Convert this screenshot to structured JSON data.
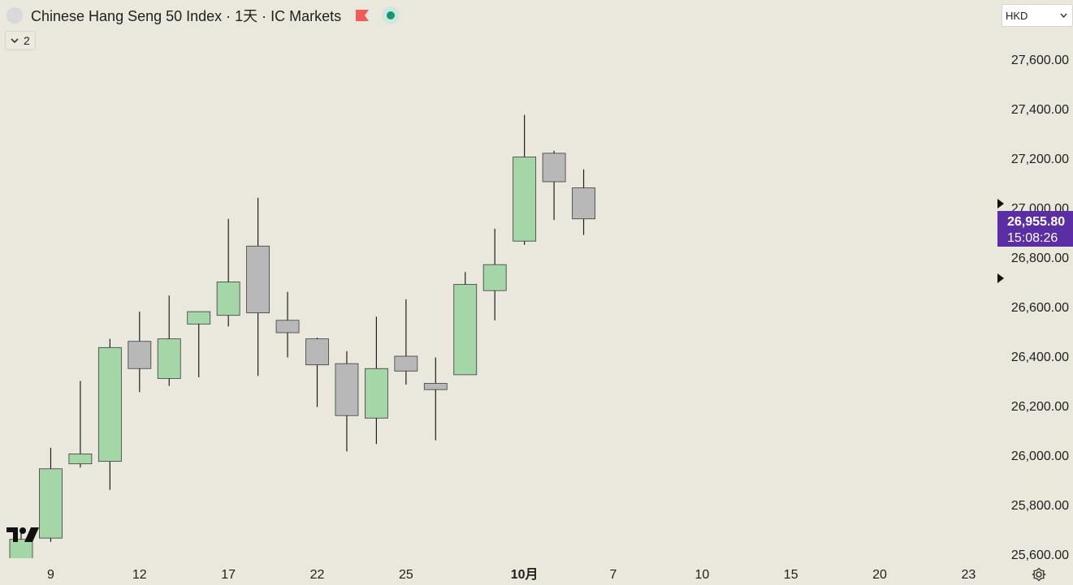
{
  "header": {
    "title": "Chinese Hang Seng 50 Index · 1天 · IC Markets",
    "collapse_count": "2"
  },
  "currency": "HKD",
  "icons": {
    "symbol": "symbol-circle-icon",
    "flag": "flag-icon",
    "live": "live-dot-icon",
    "chevron": "chevron-down-icon",
    "settings": "settings-icon",
    "logo": "tradingview-logo-icon"
  },
  "colors": {
    "background": "#eae7dd",
    "up": "#a5d6a7",
    "down": "#b8b8b8",
    "price_label": "#5b2ea6"
  },
  "chart_data": {
    "type": "candlestick",
    "y_range": [
      25600,
      27700
    ],
    "y_ticks": [
      "27,600.00",
      "27,400.00",
      "27,200.00",
      "27,000.00",
      "26,800.00",
      "26,600.00",
      "26,400.00",
      "26,200.00",
      "26,000.00",
      "25,800.00",
      "25,600.00"
    ],
    "x_ticks": [
      {
        "label": "9",
        "bar": 1
      },
      {
        "label": "12",
        "bar": 4
      },
      {
        "label": "17",
        "bar": 7
      },
      {
        "label": "22",
        "bar": 10
      },
      {
        "label": "25",
        "bar": 13
      },
      {
        "label": "10月",
        "bar": 17,
        "bold": true
      },
      {
        "label": "7",
        "bar": 20
      },
      {
        "label": "10",
        "bar": 23
      },
      {
        "label": "15",
        "bar": 26
      },
      {
        "label": "20",
        "bar": 29
      },
      {
        "label": "23",
        "bar": 32
      }
    ],
    "candles": [
      {
        "open": 25480,
        "high": 25700,
        "low": 25440,
        "close": 25660
      },
      {
        "open": 25665,
        "high": 26030,
        "low": 25650,
        "close": 25945
      },
      {
        "open": 25965,
        "high": 26300,
        "low": 25950,
        "close": 26005
      },
      {
        "open": 25975,
        "high": 26470,
        "low": 25860,
        "close": 26435
      },
      {
        "open": 26460,
        "high": 26580,
        "low": 26255,
        "close": 26350
      },
      {
        "open": 26310,
        "high": 26645,
        "low": 26280,
        "close": 26470
      },
      {
        "open": 26530,
        "high": 26580,
        "low": 26315,
        "close": 26580
      },
      {
        "open": 26565,
        "high": 26955,
        "low": 26520,
        "close": 26700
      },
      {
        "open": 26845,
        "high": 27040,
        "low": 26320,
        "close": 26575
      },
      {
        "open": 26545,
        "high": 26660,
        "low": 26395,
        "close": 26495
      },
      {
        "open": 26470,
        "high": 26475,
        "low": 26195,
        "close": 26365
      },
      {
        "open": 26370,
        "high": 26420,
        "low": 26015,
        "close": 26160
      },
      {
        "open": 26150,
        "high": 26560,
        "low": 26045,
        "close": 26350
      },
      {
        "open": 26400,
        "high": 26630,
        "low": 26285,
        "close": 26340
      },
      {
        "open": 26290,
        "high": 26395,
        "low": 26060,
        "close": 26265
      },
      {
        "open": 26325,
        "high": 26740,
        "low": 26325,
        "close": 26690
      },
      {
        "open": 26665,
        "high": 26915,
        "low": 26545,
        "close": 26770
      },
      {
        "open": 26865,
        "high": 27375,
        "low": 26850,
        "close": 27205
      },
      {
        "open": 27220,
        "high": 27230,
        "low": 26950,
        "close": 27105
      },
      {
        "open": 27080,
        "high": 27155,
        "low": 26890,
        "close": 26955
      }
    ],
    "last_price": {
      "value": 26955.8,
      "label": "26,955.80",
      "countdown": "15:08:26"
    }
  }
}
